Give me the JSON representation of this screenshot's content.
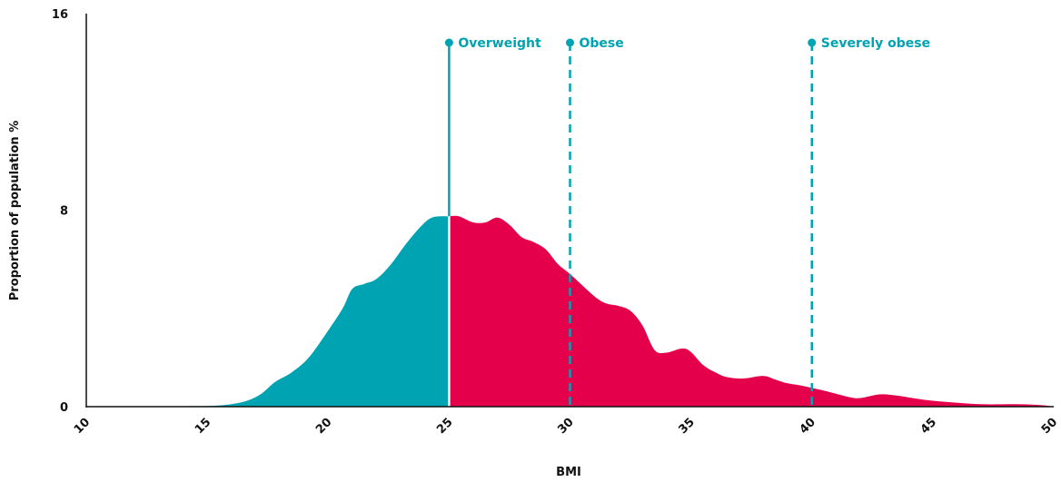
{
  "chart_data": {
    "type": "area",
    "xlabel": "BMI",
    "ylabel": "Proportion of population %",
    "xlim": [
      10,
      50
    ],
    "ylim": [
      0,
      16
    ],
    "x_ticks": [
      "10",
      "15",
      "20",
      "25",
      "30",
      "35",
      "40",
      "45",
      "50"
    ],
    "y_ticks": [
      "0",
      "8",
      "16"
    ],
    "grid": false,
    "split_at": 25,
    "colors": {
      "below": "#00a3b1",
      "above": "#e4004b",
      "axis": "#111111"
    },
    "points": [
      [
        10,
        0
      ],
      [
        14,
        0.02
      ],
      [
        15.5,
        0.05
      ],
      [
        16.5,
        0.2
      ],
      [
        17.2,
        0.5
      ],
      [
        17.8,
        1.0
      ],
      [
        18.5,
        1.4
      ],
      [
        19.2,
        2.0
      ],
      [
        20,
        3.1
      ],
      [
        20.6,
        4.0
      ],
      [
        21,
        4.8
      ],
      [
        21.5,
        5.0
      ],
      [
        22,
        5.2
      ],
      [
        22.6,
        5.8
      ],
      [
        23.2,
        6.6
      ],
      [
        23.8,
        7.3
      ],
      [
        24.3,
        7.7
      ],
      [
        25,
        7.75
      ],
      [
        25.4,
        7.75
      ],
      [
        26,
        7.5
      ],
      [
        26.5,
        7.5
      ],
      [
        27,
        7.7
      ],
      [
        27.5,
        7.4
      ],
      [
        28,
        6.9
      ],
      [
        28.5,
        6.7
      ],
      [
        29,
        6.4
      ],
      [
        29.5,
        5.8
      ],
      [
        30,
        5.4
      ],
      [
        31,
        4.5
      ],
      [
        31.5,
        4.2
      ],
      [
        32,
        4.1
      ],
      [
        32.5,
        3.9
      ],
      [
        33,
        3.3
      ],
      [
        33.5,
        2.3
      ],
      [
        34,
        2.2
      ],
      [
        34.8,
        2.35
      ],
      [
        35.5,
        1.7
      ],
      [
        36,
        1.4
      ],
      [
        36.5,
        1.2
      ],
      [
        37.2,
        1.15
      ],
      [
        38,
        1.25
      ],
      [
        38.5,
        1.1
      ],
      [
        39,
        0.95
      ],
      [
        39.6,
        0.85
      ],
      [
        40.5,
        0.65
      ],
      [
        41.5,
        0.4
      ],
      [
        42,
        0.35
      ],
      [
        42.8,
        0.5
      ],
      [
        43.5,
        0.45
      ],
      [
        44.5,
        0.3
      ],
      [
        45.5,
        0.2
      ],
      [
        47,
        0.1
      ],
      [
        48.5,
        0.1
      ],
      [
        49.5,
        0.06
      ],
      [
        50,
        0
      ]
    ],
    "markers": [
      {
        "x": 25,
        "label": "Overweight",
        "style": "solid"
      },
      {
        "x": 30,
        "label": "Obese",
        "style": "dashed"
      },
      {
        "x": 40,
        "label": "Severely obese",
        "style": "dashed"
      }
    ]
  }
}
